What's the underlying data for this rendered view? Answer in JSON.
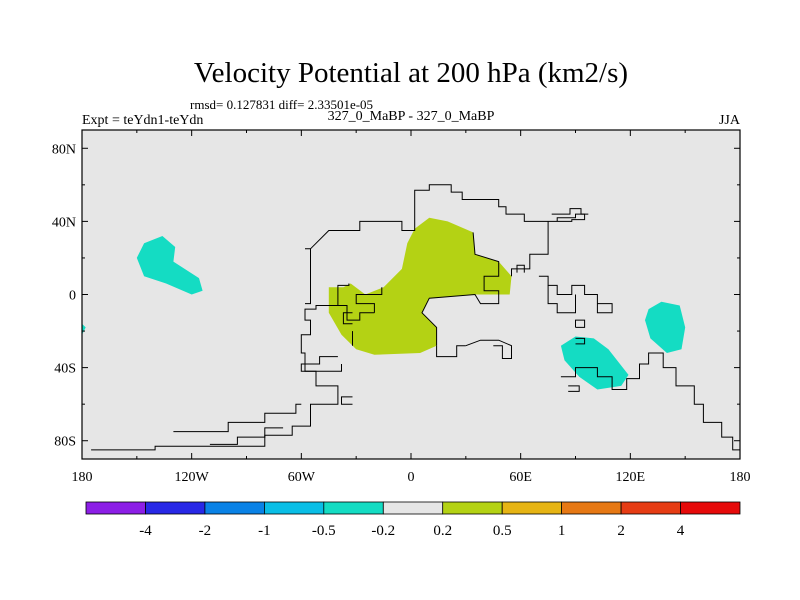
{
  "chart_data": {
    "type": "heatmap",
    "title": "Velocity Potential at 200 hPa (km2/s)",
    "stats": "rmsd= 0.127831 diff= 2.33501e-05",
    "left_label": "Expt = teYdn1-teYdn",
    "center_label": "327_0_MaBP - 327_0_MaBP",
    "right_label": "JJA",
    "lon_range": [
      -180,
      180
    ],
    "lat_range": [
      -90,
      90
    ],
    "x_ticks": [
      {
        "value": -180,
        "label": "180"
      },
      {
        "value": -120,
        "label": "120W"
      },
      {
        "value": -60,
        "label": "60W"
      },
      {
        "value": 0,
        "label": "0"
      },
      {
        "value": 60,
        "label": "60E"
      },
      {
        "value": 120,
        "label": "120E"
      },
      {
        "value": 180,
        "label": "180"
      }
    ],
    "y_ticks": [
      {
        "value": 80,
        "label": "80N"
      },
      {
        "value": 40,
        "label": "40N"
      },
      {
        "value": 0,
        "label": "0"
      },
      {
        "value": -40,
        "label": "40S"
      },
      {
        "value": -80,
        "label": "80S"
      }
    ],
    "background_color": "#e6e6e6",
    "colorbar": {
      "colors": [
        "#8c1ee6",
        "#2828e6",
        "#0a82e6",
        "#0abee6",
        "#14dcc3",
        "#e6e6e6",
        "#b4d214",
        "#e6b414",
        "#e67814",
        "#e63c14",
        "#e60a0a"
      ],
      "labels": [
        "-4",
        "-2",
        "-1",
        "-0.5",
        "-0.2",
        "0.2",
        "0.5",
        "1",
        "2",
        "4"
      ]
    },
    "regions": [
      {
        "name": "positive-anomaly-eurasia-africa",
        "level": "0.2 to 0.5",
        "color": "#b4d214",
        "points": [
          [
            -37,
            4
          ],
          [
            -45,
            4
          ],
          [
            -45,
            -10
          ],
          [
            -38,
            -22
          ],
          [
            -30,
            -30
          ],
          [
            -20,
            -33
          ],
          [
            5,
            -32
          ],
          [
            14,
            -28
          ],
          [
            14,
            -18
          ],
          [
            6,
            -10
          ],
          [
            10,
            -2
          ],
          [
            35,
            0
          ],
          [
            54,
            0
          ],
          [
            55,
            10
          ],
          [
            48,
            18
          ],
          [
            35,
            22
          ],
          [
            34,
            34
          ],
          [
            20,
            40
          ],
          [
            10,
            42
          ],
          [
            2,
            36
          ],
          [
            -2,
            28
          ],
          [
            -5,
            14
          ],
          [
            -15,
            4
          ],
          [
            -25,
            0
          ],
          [
            -33,
            6
          ]
        ]
      },
      {
        "name": "negative-anomaly-north-pacific",
        "level": "-0.5 to -0.2",
        "color": "#14dcc3",
        "points": [
          [
            -150,
            20
          ],
          [
            -146,
            28
          ],
          [
            -136,
            32
          ],
          [
            -129,
            26
          ],
          [
            -130,
            18
          ],
          [
            -116,
            9
          ],
          [
            -114,
            2
          ],
          [
            -120,
            0
          ],
          [
            -134,
            6
          ],
          [
            -146,
            10
          ]
        ]
      },
      {
        "name": "negative-anomaly-indian-ocean",
        "level": "-0.5 to -0.2",
        "color": "#14dcc3",
        "points": [
          [
            82,
            -28
          ],
          [
            90,
            -23
          ],
          [
            100,
            -24
          ],
          [
            108,
            -30
          ],
          [
            119,
            -44
          ],
          [
            115,
            -50
          ],
          [
            102,
            -52
          ],
          [
            92,
            -45
          ],
          [
            84,
            -36
          ]
        ]
      },
      {
        "name": "negative-anomaly-west-pacific",
        "level": "-0.5 to -0.2",
        "color": "#14dcc3",
        "points": [
          [
            130,
            -8
          ],
          [
            137,
            -4
          ],
          [
            147,
            -6
          ],
          [
            150,
            -18
          ],
          [
            148,
            -30
          ],
          [
            140,
            -32
          ],
          [
            131,
            -24
          ],
          [
            128,
            -14
          ]
        ]
      },
      {
        "name": "negative-anomaly-dateline",
        "level": "-0.5 to -0.2",
        "color": "#14dcc3",
        "points": [
          [
            -180,
            -16
          ],
          [
            -178,
            -18
          ],
          [
            -180,
            -22
          ]
        ]
      }
    ],
    "coastlines": [
      [
        [
          -175,
          -85
        ],
        [
          -140,
          -85
        ],
        [
          -140,
          -83
        ],
        [
          -80,
          -83
        ],
        [
          -80,
          -77
        ],
        [
          -65,
          -77
        ],
        [
          -65,
          -72
        ],
        [
          -55,
          -72
        ],
        [
          -55,
          -60
        ],
        [
          -40,
          -60
        ],
        [
          -40,
          -50
        ],
        [
          -52,
          -50
        ],
        [
          -52,
          -42
        ],
        [
          -58,
          -42
        ],
        [
          -58,
          -32
        ],
        [
          -60,
          -32
        ],
        [
          -60,
          -22
        ],
        [
          -55,
          -22
        ],
        [
          -55,
          -14
        ],
        [
          -58,
          -14
        ],
        [
          -58,
          -8
        ],
        [
          -52,
          -8
        ],
        [
          -52,
          -6
        ],
        [
          -35,
          -6
        ],
        [
          -35,
          -14
        ],
        [
          -28,
          -14
        ],
        [
          -28,
          -10
        ],
        [
          -20,
          -10
        ]
      ],
      [
        [
          -130,
          -75
        ],
        [
          -100,
          -75
        ],
        [
          -100,
          -70
        ],
        [
          -80,
          -70
        ],
        [
          -80,
          -65
        ],
        [
          -63,
          -65
        ],
        [
          -63,
          -60
        ],
        [
          -60,
          -60
        ]
      ],
      [
        [
          -110,
          -82
        ],
        [
          -95,
          -82
        ],
        [
          -95,
          -78
        ],
        [
          -80,
          -78
        ],
        [
          -80,
          -73
        ],
        [
          -70,
          -73
        ]
      ],
      [
        [
          -38,
          -38
        ],
        [
          -38,
          -42
        ],
        [
          -60,
          -42
        ],
        [
          -60,
          -38
        ],
        [
          -50,
          -38
        ],
        [
          -50,
          -34
        ],
        [
          -40,
          -34
        ]
      ],
      [
        [
          -40,
          -6
        ],
        [
          -40,
          5
        ],
        [
          -34,
          5
        ],
        [
          -34,
          6
        ]
      ],
      [
        [
          -16,
          4
        ],
        [
          -16,
          0
        ],
        [
          -30,
          0
        ],
        [
          -30,
          -5
        ],
        [
          -20,
          -5
        ],
        [
          -20,
          -10
        ]
      ],
      [
        [
          -32,
          -10
        ],
        [
          -37,
          -10
        ],
        [
          -37,
          -16
        ],
        [
          -32,
          -16
        ]
      ],
      [
        [
          -32,
          -60
        ],
        [
          -38,
          -60
        ],
        [
          -38,
          -56
        ],
        [
          -32,
          -56
        ]
      ],
      [
        [
          -32,
          -20
        ],
        [
          -32,
          -28
        ]
      ],
      [
        [
          -58,
          25
        ],
        [
          -55,
          25
        ],
        [
          -55,
          -5
        ],
        [
          -58,
          -5
        ]
      ],
      [
        [
          -55,
          25
        ],
        [
          -45,
          35
        ],
        [
          -28,
          35
        ],
        [
          -28,
          40
        ],
        [
          -5,
          40
        ],
        [
          -5,
          35
        ],
        [
          2,
          35
        ],
        [
          2,
          57
        ],
        [
          10,
          57
        ],
        [
          10,
          60
        ],
        [
          22,
          60
        ],
        [
          22,
          56
        ],
        [
          28,
          56
        ],
        [
          28,
          52
        ],
        [
          48,
          52
        ],
        [
          48,
          48
        ],
        [
          52,
          48
        ],
        [
          52,
          44
        ],
        [
          62,
          44
        ],
        [
          62,
          40
        ],
        [
          80,
          40
        ],
        [
          80,
          42
        ],
        [
          90,
          42
        ],
        [
          90,
          44
        ],
        [
          95,
          44
        ],
        [
          95,
          41
        ],
        [
          88,
          41
        ],
        [
          88,
          40
        ],
        [
          75,
          40
        ],
        [
          75,
          22
        ],
        [
          65,
          22
        ],
        [
          65,
          14
        ],
        [
          55,
          14
        ],
        [
          55,
          10
        ]
      ],
      [
        [
          14,
          -28
        ],
        [
          14,
          -18
        ],
        [
          6,
          -10
        ],
        [
          10,
          -2
        ],
        [
          35,
          0
        ],
        [
          38,
          -5
        ],
        [
          48,
          -5
        ],
        [
          48,
          2
        ],
        [
          40,
          2
        ],
        [
          40,
          10
        ],
        [
          48,
          10
        ],
        [
          48,
          18
        ],
        [
          35,
          22
        ],
        [
          34,
          34
        ]
      ],
      [
        [
          30,
          -28
        ],
        [
          25,
          -28
        ],
        [
          25,
          -34
        ],
        [
          14,
          -34
        ],
        [
          14,
          -28
        ]
      ],
      [
        [
          45,
          -28
        ],
        [
          50,
          -28
        ],
        [
          50,
          -35
        ],
        [
          55,
          -35
        ],
        [
          55,
          -28
        ],
        [
          48,
          -25
        ],
        [
          38,
          -25
        ],
        [
          30,
          -28
        ]
      ],
      [
        [
          62,
          12
        ],
        [
          62,
          16
        ],
        [
          58,
          16
        ],
        [
          58,
          12
        ]
      ],
      [
        [
          70,
          10
        ],
        [
          75,
          10
        ],
        [
          75,
          5
        ],
        [
          80,
          5
        ],
        [
          80,
          0
        ],
        [
          88,
          0
        ],
        [
          88,
          5
        ],
        [
          95,
          5
        ],
        [
          95,
          0
        ],
        [
          102,
          0
        ],
        [
          102,
          -5
        ],
        [
          110,
          -5
        ],
        [
          110,
          -10
        ],
        [
          102,
          -10
        ],
        [
          102,
          -5
        ]
      ],
      [
        [
          90,
          0
        ],
        [
          90,
          -10
        ],
        [
          80,
          -10
        ],
        [
          80,
          -5
        ],
        [
          75,
          -5
        ],
        [
          75,
          5
        ]
      ],
      [
        [
          82,
          -45
        ],
        [
          90,
          -45
        ],
        [
          90,
          -40
        ],
        [
          102,
          -40
        ],
        [
          102,
          -45
        ],
        [
          110,
          -45
        ],
        [
          110,
          -52
        ],
        [
          118,
          -52
        ],
        [
          118,
          -46
        ],
        [
          125,
          -46
        ],
        [
          125,
          -38
        ],
        [
          130,
          -38
        ],
        [
          130,
          -32
        ],
        [
          138,
          -32
        ],
        [
          138,
          -40
        ],
        [
          145,
          -40
        ],
        [
          145,
          -50
        ],
        [
          155,
          -50
        ],
        [
          155,
          -60
        ],
        [
          160,
          -60
        ],
        [
          160,
          -70
        ],
        [
          170,
          -70
        ],
        [
          170,
          -78
        ],
        [
          176,
          -78
        ],
        [
          176,
          -85
        ],
        [
          180,
          -85
        ]
      ],
      [
        [
          90,
          -18
        ],
        [
          95,
          -18
        ],
        [
          95,
          -14
        ],
        [
          90,
          -14
        ],
        [
          90,
          -18
        ]
      ],
      [
        [
          90,
          -27
        ],
        [
          95,
          -27
        ],
        [
          95,
          -24
        ],
        [
          90,
          -24
        ]
      ],
      [
        [
          77,
          44
        ],
        [
          87,
          44
        ],
        [
          87,
          47
        ],
        [
          93,
          47
        ],
        [
          93,
          44
        ],
        [
          97,
          44
        ]
      ],
      [
        [
          86,
          -50
        ],
        [
          92,
          -50
        ],
        [
          92,
          -53
        ],
        [
          86,
          -53
        ]
      ]
    ]
  }
}
